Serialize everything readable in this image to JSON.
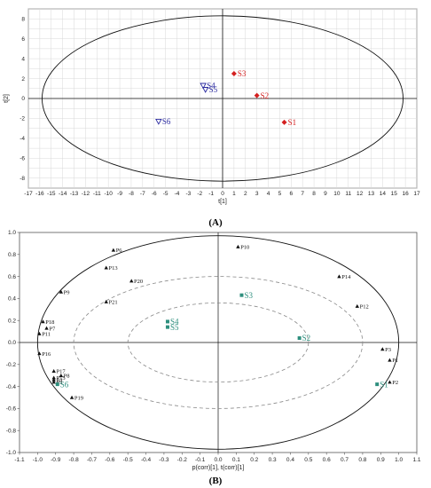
{
  "chart_data": [
    {
      "panel": "(A)",
      "type": "scatter",
      "xlabel": "t[1]",
      "ylabel": "t[2]",
      "xlim": [
        -17,
        17
      ],
      "ylim": [
        -9,
        9
      ],
      "xticks": [
        -17,
        -16,
        -15,
        -14,
        -13,
        -12,
        -11,
        -10,
        -9,
        -8,
        -7,
        -6,
        -5,
        -4,
        -3,
        -2,
        -1,
        0,
        1,
        2,
        3,
        4,
        5,
        6,
        7,
        8,
        9,
        10,
        11,
        12,
        13,
        14,
        15,
        16,
        17
      ],
      "yticks": [
        -8,
        -6,
        -4,
        -2,
        0,
        2,
        4,
        6,
        8
      ],
      "grid": true,
      "ellipse": {
        "rx": 15.8,
        "ry": 8.3
      },
      "series": [
        {
          "color": "#d42020",
          "marker": "diamond",
          "points": [
            {
              "label": "S3",
              "x": 1.0,
              "y": 2.5
            },
            {
              "label": "S2",
              "x": 3.0,
              "y": 0.3
            },
            {
              "label": "S1",
              "x": 5.4,
              "y": -2.4
            }
          ]
        },
        {
          "color": "#2a2aa0",
          "marker": "triangle-down",
          "points": [
            {
              "label": "S4",
              "x": -1.7,
              "y": 1.3
            },
            {
              "label": "S5",
              "x": -1.5,
              "y": 0.9
            },
            {
              "label": "S6",
              "x": -5.6,
              "y": -2.3
            }
          ]
        }
      ]
    },
    {
      "panel": "(B)",
      "type": "scatter",
      "xlabel": "p(corr)[1], t(corr)[1]",
      "ylabel": "",
      "xlim": [
        -1.1,
        1.1
      ],
      "ylim": [
        -1.0,
        1.0
      ],
      "xticks": [
        -1.1,
        -1.0,
        -0.9,
        -0.8,
        -0.7,
        -0.6,
        -0.5,
        -0.4,
        -0.3,
        -0.2,
        -0.1,
        0.0,
        0.1,
        0.2,
        0.3,
        0.4,
        0.5,
        0.6,
        0.7,
        0.8,
        0.9,
        1.0,
        1.1
      ],
      "xtick_labels": [
        "-1.1",
        "-1.0",
        "-0.9",
        "-0.8",
        "-0.7",
        "-0.6",
        "-0.5",
        "-0.4",
        "-0.3",
        "-0.2",
        "-0.1",
        "0.0",
        "0.1",
        "0.2",
        "0.3",
        "0.4",
        "0.5",
        "0.6",
        "0.7",
        "0.8",
        "0.9",
        "1.0",
        "1.1"
      ],
      "yticks": [
        -1.0,
        -0.8,
        -0.6,
        -0.4,
        -0.2,
        0.0,
        0.2,
        0.4,
        0.6,
        0.8,
        1.0
      ],
      "ytick_labels": [
        "-1.0",
        "-0.8",
        "-0.6",
        "-0.4",
        "-0.2",
        "0.0",
        "0.2",
        "0.4",
        "0.6",
        "0.8",
        "1.0"
      ],
      "grid": false,
      "ellipses": [
        {
          "rx": 1.0,
          "ry": 0.97,
          "style": "solid"
        },
        {
          "rx": 0.8,
          "ry": 0.6,
          "style": "dashed"
        },
        {
          "rx": 0.5,
          "ry": 0.36,
          "style": "dashed"
        }
      ],
      "series": [
        {
          "color": "#111111",
          "marker": "triangle",
          "points": [
            {
              "label": "P1",
              "x": 0.95,
              "y": -0.16
            },
            {
              "label": "P2",
              "x": 0.95,
              "y": -0.36
            },
            {
              "label": "P3",
              "x": 0.91,
              "y": -0.06
            },
            {
              "label": "P4",
              "x": -0.91,
              "y": -0.34
            },
            {
              "label": "P5",
              "x": -0.91,
              "y": -0.36
            },
            {
              "label": "P6",
              "x": -0.58,
              "y": 0.84
            },
            {
              "label": "P7",
              "x": -0.95,
              "y": 0.13
            },
            {
              "label": "P8",
              "x": -0.87,
              "y": -0.3
            },
            {
              "label": "P9",
              "x": -0.87,
              "y": 0.46
            },
            {
              "label": "P10",
              "x": 0.11,
              "y": 0.87
            },
            {
              "label": "P11",
              "x": -0.99,
              "y": 0.08
            },
            {
              "label": "P12",
              "x": 0.77,
              "y": 0.33
            },
            {
              "label": "P13",
              "x": -0.62,
              "y": 0.68
            },
            {
              "label": "P14",
              "x": 0.67,
              "y": 0.6
            },
            {
              "label": "P15",
              "x": -0.91,
              "y": -0.32
            },
            {
              "label": "P16",
              "x": -0.99,
              "y": -0.1
            },
            {
              "label": "P17",
              "x": -0.91,
              "y": -0.26
            },
            {
              "label": "P18",
              "x": -0.97,
              "y": 0.19
            },
            {
              "label": "P19",
              "x": -0.81,
              "y": -0.5
            },
            {
              "label": "P20",
              "x": -0.48,
              "y": 0.56
            },
            {
              "label": "P21",
              "x": -0.62,
              "y": 0.37
            }
          ]
        },
        {
          "color": "#2e8f7e",
          "marker": "square",
          "points": [
            {
              "label": "S1",
              "x": 0.88,
              "y": -0.38
            },
            {
              "label": "S2",
              "x": 0.45,
              "y": 0.04
            },
            {
              "label": "S3",
              "x": 0.13,
              "y": 0.43
            },
            {
              "label": "S4",
              "x": -0.28,
              "y": 0.19
            },
            {
              "label": "S5",
              "x": -0.28,
              "y": 0.14
            },
            {
              "label": "S6",
              "x": -0.89,
              "y": -0.38
            }
          ]
        }
      ]
    }
  ]
}
